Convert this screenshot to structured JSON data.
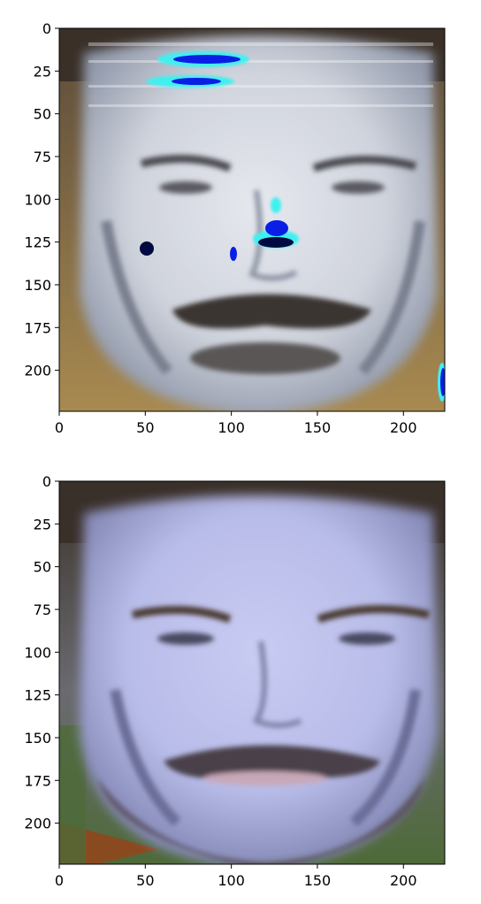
{
  "chart_data": [
    {
      "type": "image",
      "image_content": "face photograph with artifact-like blue/cyan colour blobs on the forehead, nose and cheek",
      "palette": {
        "skin": "#cfd3dc",
        "dark": "#3a3430",
        "hair": "#4a3a2c",
        "artifact_blue": "#0a1ee6",
        "artifact_cyan": "#40f0f0"
      },
      "xlim": [
        0,
        224
      ],
      "ylim": [
        224,
        0
      ],
      "xticks": [
        "0",
        "50",
        "100",
        "150",
        "200"
      ],
      "yticks": [
        "0",
        "25",
        "50",
        "75",
        "100",
        "125",
        "150",
        "175",
        "200"
      ],
      "xlabel": "",
      "ylabel": "",
      "title": ""
    },
    {
      "type": "image",
      "image_content": "face photograph with blue/lavender tint",
      "palette": {
        "skin": "#b8bce8",
        "dark": "#4a4048",
        "hair": "#4a3a2c",
        "background_green": "#4e6a38",
        "shirt": "#8a4a20"
      },
      "xlim": [
        0,
        224
      ],
      "ylim": [
        224,
        0
      ],
      "xticks": [
        "0",
        "50",
        "100",
        "150",
        "200"
      ],
      "yticks": [
        "0",
        "25",
        "50",
        "75",
        "100",
        "125",
        "150",
        "175",
        "200"
      ],
      "xlabel": "",
      "ylabel": "",
      "title": ""
    }
  ]
}
